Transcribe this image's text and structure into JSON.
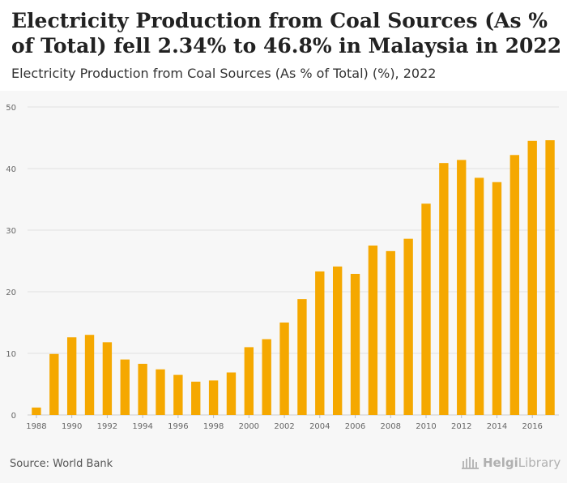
{
  "header": {
    "title": "Electricity Production from Coal Sources (As % of Total) fell 2.34% to 46.8% in Malaysia in 2022",
    "subtitle": "Electricity Production from Coal Sources (As % of Total) (%), 2022"
  },
  "footer": {
    "source": "Source: World Bank",
    "logo_text_bold": "Helgi",
    "logo_text_rest": "Library"
  },
  "colors": {
    "bar": "#f5a800",
    "grid": "#e2e2e2",
    "axis_text": "#666666",
    "panel": "#f7f7f7"
  },
  "chart_data": {
    "type": "bar",
    "title": "Electricity Production from Coal Sources (As % of Total) (%), 2022",
    "xlabel": "",
    "ylabel": "",
    "ylim": [
      0,
      50
    ],
    "yticks": [
      0,
      10,
      20,
      30,
      40,
      50
    ],
    "grid": true,
    "categories": [
      "1988",
      "1989",
      "1990",
      "1991",
      "1992",
      "1993",
      "1994",
      "1995",
      "1996",
      "1997",
      "1998",
      "1999",
      "2000",
      "2001",
      "2002",
      "2003",
      "2004",
      "2005",
      "2006",
      "2007",
      "2008",
      "2009",
      "2010",
      "2011",
      "2012",
      "2013",
      "2014",
      "2015",
      "2016",
      "2017"
    ],
    "xtick_labels": [
      "1988",
      "1990",
      "1992",
      "1994",
      "1996",
      "1998",
      "2000",
      "2002",
      "2004",
      "2006",
      "2008",
      "2010",
      "2012",
      "2014",
      "2016"
    ],
    "values": [
      1.2,
      9.9,
      12.6,
      13.0,
      11.8,
      9.0,
      8.3,
      7.4,
      6.5,
      5.4,
      5.6,
      6.9,
      11.0,
      12.3,
      15.0,
      18.8,
      23.3,
      24.1,
      22.9,
      27.5,
      26.6,
      28.6,
      34.3,
      40.9,
      41.4,
      38.5,
      37.8,
      42.2,
      44.5,
      44.6
    ]
  }
}
